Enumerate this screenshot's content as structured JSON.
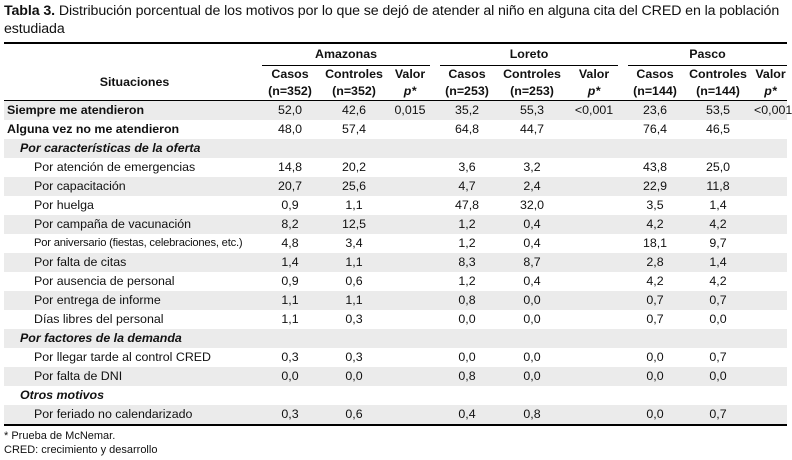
{
  "caption": {
    "label": "Tabla 3.",
    "text": " Distribución porcentual de los motivos por lo que se dejó de atender al niño en alguna cita del CRED en la población estudiada"
  },
  "header": {
    "situaciones": "Situaciones",
    "regions": [
      "Amazonas",
      "Loreto",
      "Pasco"
    ],
    "casos": [
      "Casos",
      "Casos",
      "Casos"
    ],
    "casos_n": [
      "(n=352)",
      "(n=253)",
      "(n=144)"
    ],
    "controles": [
      "Controles",
      "Controles",
      "Controles"
    ],
    "controles_n": [
      "(n=352)",
      "(n=253)",
      "(n=144)"
    ],
    "valor": "Valor",
    "p": "p*"
  },
  "rows": {
    "siempre": {
      "label": "Siempre me atendieron",
      "v": [
        "52,0",
        "42,6",
        "0,015",
        "35,2",
        "55,3",
        "<0,001",
        "23,6",
        "53,5",
        "<0,001"
      ]
    },
    "alguna": {
      "label": "Alguna vez no me atendieron",
      "v": [
        "48,0",
        "57,4",
        "",
        "64,8",
        "44,7",
        "",
        "76,4",
        "46,5",
        ""
      ]
    },
    "sec_oferta": "Por características de la oferta",
    "emergencias": {
      "label": "Por atención de emergencias",
      "v": [
        "14,8",
        "20,2",
        "",
        "3,6",
        "3,2",
        "",
        "43,8",
        "25,0",
        ""
      ]
    },
    "capacitacion": {
      "label": "Por capacitación",
      "v": [
        "20,7",
        "25,6",
        "",
        "4,7",
        "2,4",
        "",
        "22,9",
        "11,8",
        ""
      ]
    },
    "huelga": {
      "label": "Por huelga",
      "v": [
        "0,9",
        "1,1",
        "",
        "47,8",
        "32,0",
        "",
        "3,5",
        "1,4",
        ""
      ]
    },
    "campana": {
      "label": "Por campaña de vacunación",
      "v": [
        "8,2",
        "12,5",
        "",
        "1,2",
        "0,4",
        "",
        "4,2",
        "4,2",
        ""
      ]
    },
    "aniversario": {
      "label": "Por aniversario (fiestas, celebraciones, etc.)",
      "v": [
        "4,8",
        "3,4",
        "",
        "1,2",
        "0,4",
        "",
        "18,1",
        "9,7",
        ""
      ]
    },
    "citas": {
      "label": "Por falta de citas",
      "v": [
        "1,4",
        "1,1",
        "",
        "8,3",
        "8,7",
        "",
        "2,8",
        "1,4",
        ""
      ]
    },
    "ausencia": {
      "label": "Por ausencia de personal",
      "v": [
        "0,9",
        "0,6",
        "",
        "1,2",
        "0,4",
        "",
        "4,2",
        "4,2",
        ""
      ]
    },
    "informe": {
      "label": "Por entrega de informe",
      "v": [
        "1,1",
        "1,1",
        "",
        "0,8",
        "0,0",
        "",
        "0,7",
        "0,7",
        ""
      ]
    },
    "dias": {
      "label": "Días libres del personal",
      "v": [
        "1,1",
        "0,3",
        "",
        "0,0",
        "0,0",
        "",
        "0,7",
        "0,0",
        ""
      ]
    },
    "sec_demanda": "Por factores de la demanda",
    "tarde": {
      "label": "Por llegar tarde al control CRED",
      "v": [
        "0,3",
        "0,3",
        "",
        "0,0",
        "0,0",
        "",
        "0,0",
        "0,7",
        ""
      ]
    },
    "dni": {
      "label": "Por falta de DNI",
      "v": [
        "0,0",
        "0,0",
        "",
        "0,8",
        "0,0",
        "",
        "0,0",
        "0,0",
        ""
      ]
    },
    "sec_otros": "Otros motivos",
    "feriado": {
      "label": "Por feriado no calendarizado",
      "v": [
        "0,3",
        "0,6",
        "",
        "0,4",
        "0,8",
        "",
        "0,0",
        "0,7",
        ""
      ]
    }
  },
  "footnotes": [
    "* Prueba de McNemar.",
    "CRED: crecimiento y desarrollo"
  ],
  "colors": {
    "shade": "#ebebeb",
    "rule": "#000000"
  }
}
